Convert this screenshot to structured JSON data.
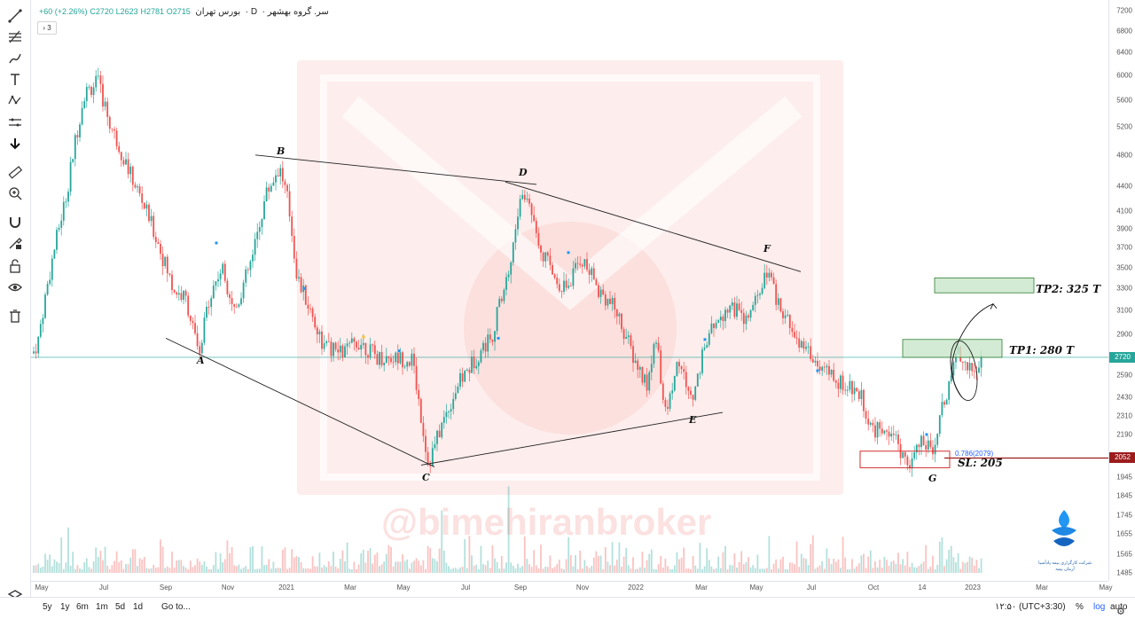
{
  "legend": {
    "symbol": "سر. گروه بهشهر",
    "interval": "D",
    "exchange": "بورس تهران",
    "open": "O2715",
    "high": "H2781",
    "low": "L2623",
    "close": "C2720",
    "change": "+60 (+2.26%)",
    "collapse_count": "3"
  },
  "price_axis": {
    "labels": [
      "7200",
      "6800",
      "6400",
      "6000",
      "5600",
      "5200",
      "4800",
      "4400",
      "4100",
      "3900",
      "3700",
      "3500",
      "3300",
      "3100",
      "2900",
      "2720",
      "2590",
      "2430",
      "2310",
      "2190",
      "2052",
      "1945",
      "1845",
      "1745",
      "1655",
      "1565",
      "1485"
    ],
    "last_price": "2720",
    "sl_price": "2052"
  },
  "time_axis": {
    "labels": [
      "May",
      "Jul",
      "Sep",
      "Nov",
      "2021",
      "Mar",
      "May",
      "Jul",
      "Sep",
      "Nov",
      "2022",
      "Mar",
      "May",
      "Jul",
      "Oct",
      "14",
      "2023",
      "Mar",
      "May"
    ]
  },
  "annotations": {
    "points": [
      "A",
      "B",
      "C",
      "D",
      "E",
      "F",
      "G"
    ],
    "tp1": "TP1: 280 T",
    "tp2": "TP2: 325 T",
    "sl": "SL: 205",
    "fib": "0.786(2079)"
  },
  "watermark": "@bimehiranbroker",
  "logo_text": "شرکت کارگزاری بیمه پادآسیا آرمان بیمه",
  "bottom_bar": {
    "ranges": [
      "5y",
      "1y",
      "6m",
      "1m",
      "5d",
      "1d"
    ],
    "goto": "Go to...",
    "time": "۱۲:۵۰ (UTC+3:30)",
    "percent": "%",
    "log": "log",
    "auto": "auto"
  },
  "colors": {
    "up": "#26a69a",
    "down": "#ef5350",
    "price_line": "#26a69a",
    "sl_line": "#9c1c1c",
    "tp_box": "#c8e6c9",
    "sl_box": "#d32f2f"
  },
  "toolbar": {
    "icons": [
      "trend-line-icon",
      "fib-tool-icon",
      "brush-icon",
      "text-icon",
      "pattern-icon",
      "forecast-icon",
      "arrow-down-icon",
      "ruler-icon",
      "zoom-icon",
      "magnet-icon",
      "lock-drawing-icon",
      "lock-icon",
      "eye-icon",
      "trash-icon",
      "layers-icon"
    ]
  },
  "chart_data": {
    "type": "candlestick",
    "title": "سر. گروه بهشهر",
    "x": [
      "May",
      "Jul",
      "Sep",
      "Nov",
      "2021",
      "Mar",
      "May",
      "Jul",
      "Sep",
      "Nov",
      "2022",
      "Mar",
      "May",
      "Jul",
      "Oct",
      "14",
      "2023"
    ],
    "close": [
      2750,
      5400,
      3900,
      4000,
      4300,
      2750,
      2750,
      2600,
      4200,
      3400,
      2900,
      2500,
      3100,
      2900,
      2100,
      2400,
      2720
    ],
    "y_scale": "log",
    "ylim": [
      1485,
      7200
    ],
    "last": 2720,
    "patterns": {
      "A": 2800,
      "B": 4650,
      "C": 2010,
      "D": 4300,
      "E": 2270,
      "F": 3450,
      "G": 1960
    },
    "targets": {
      "TP1": 2800,
      "TP2": 3250,
      "SL": 2050
    },
    "fib_0_786": 2079
  }
}
